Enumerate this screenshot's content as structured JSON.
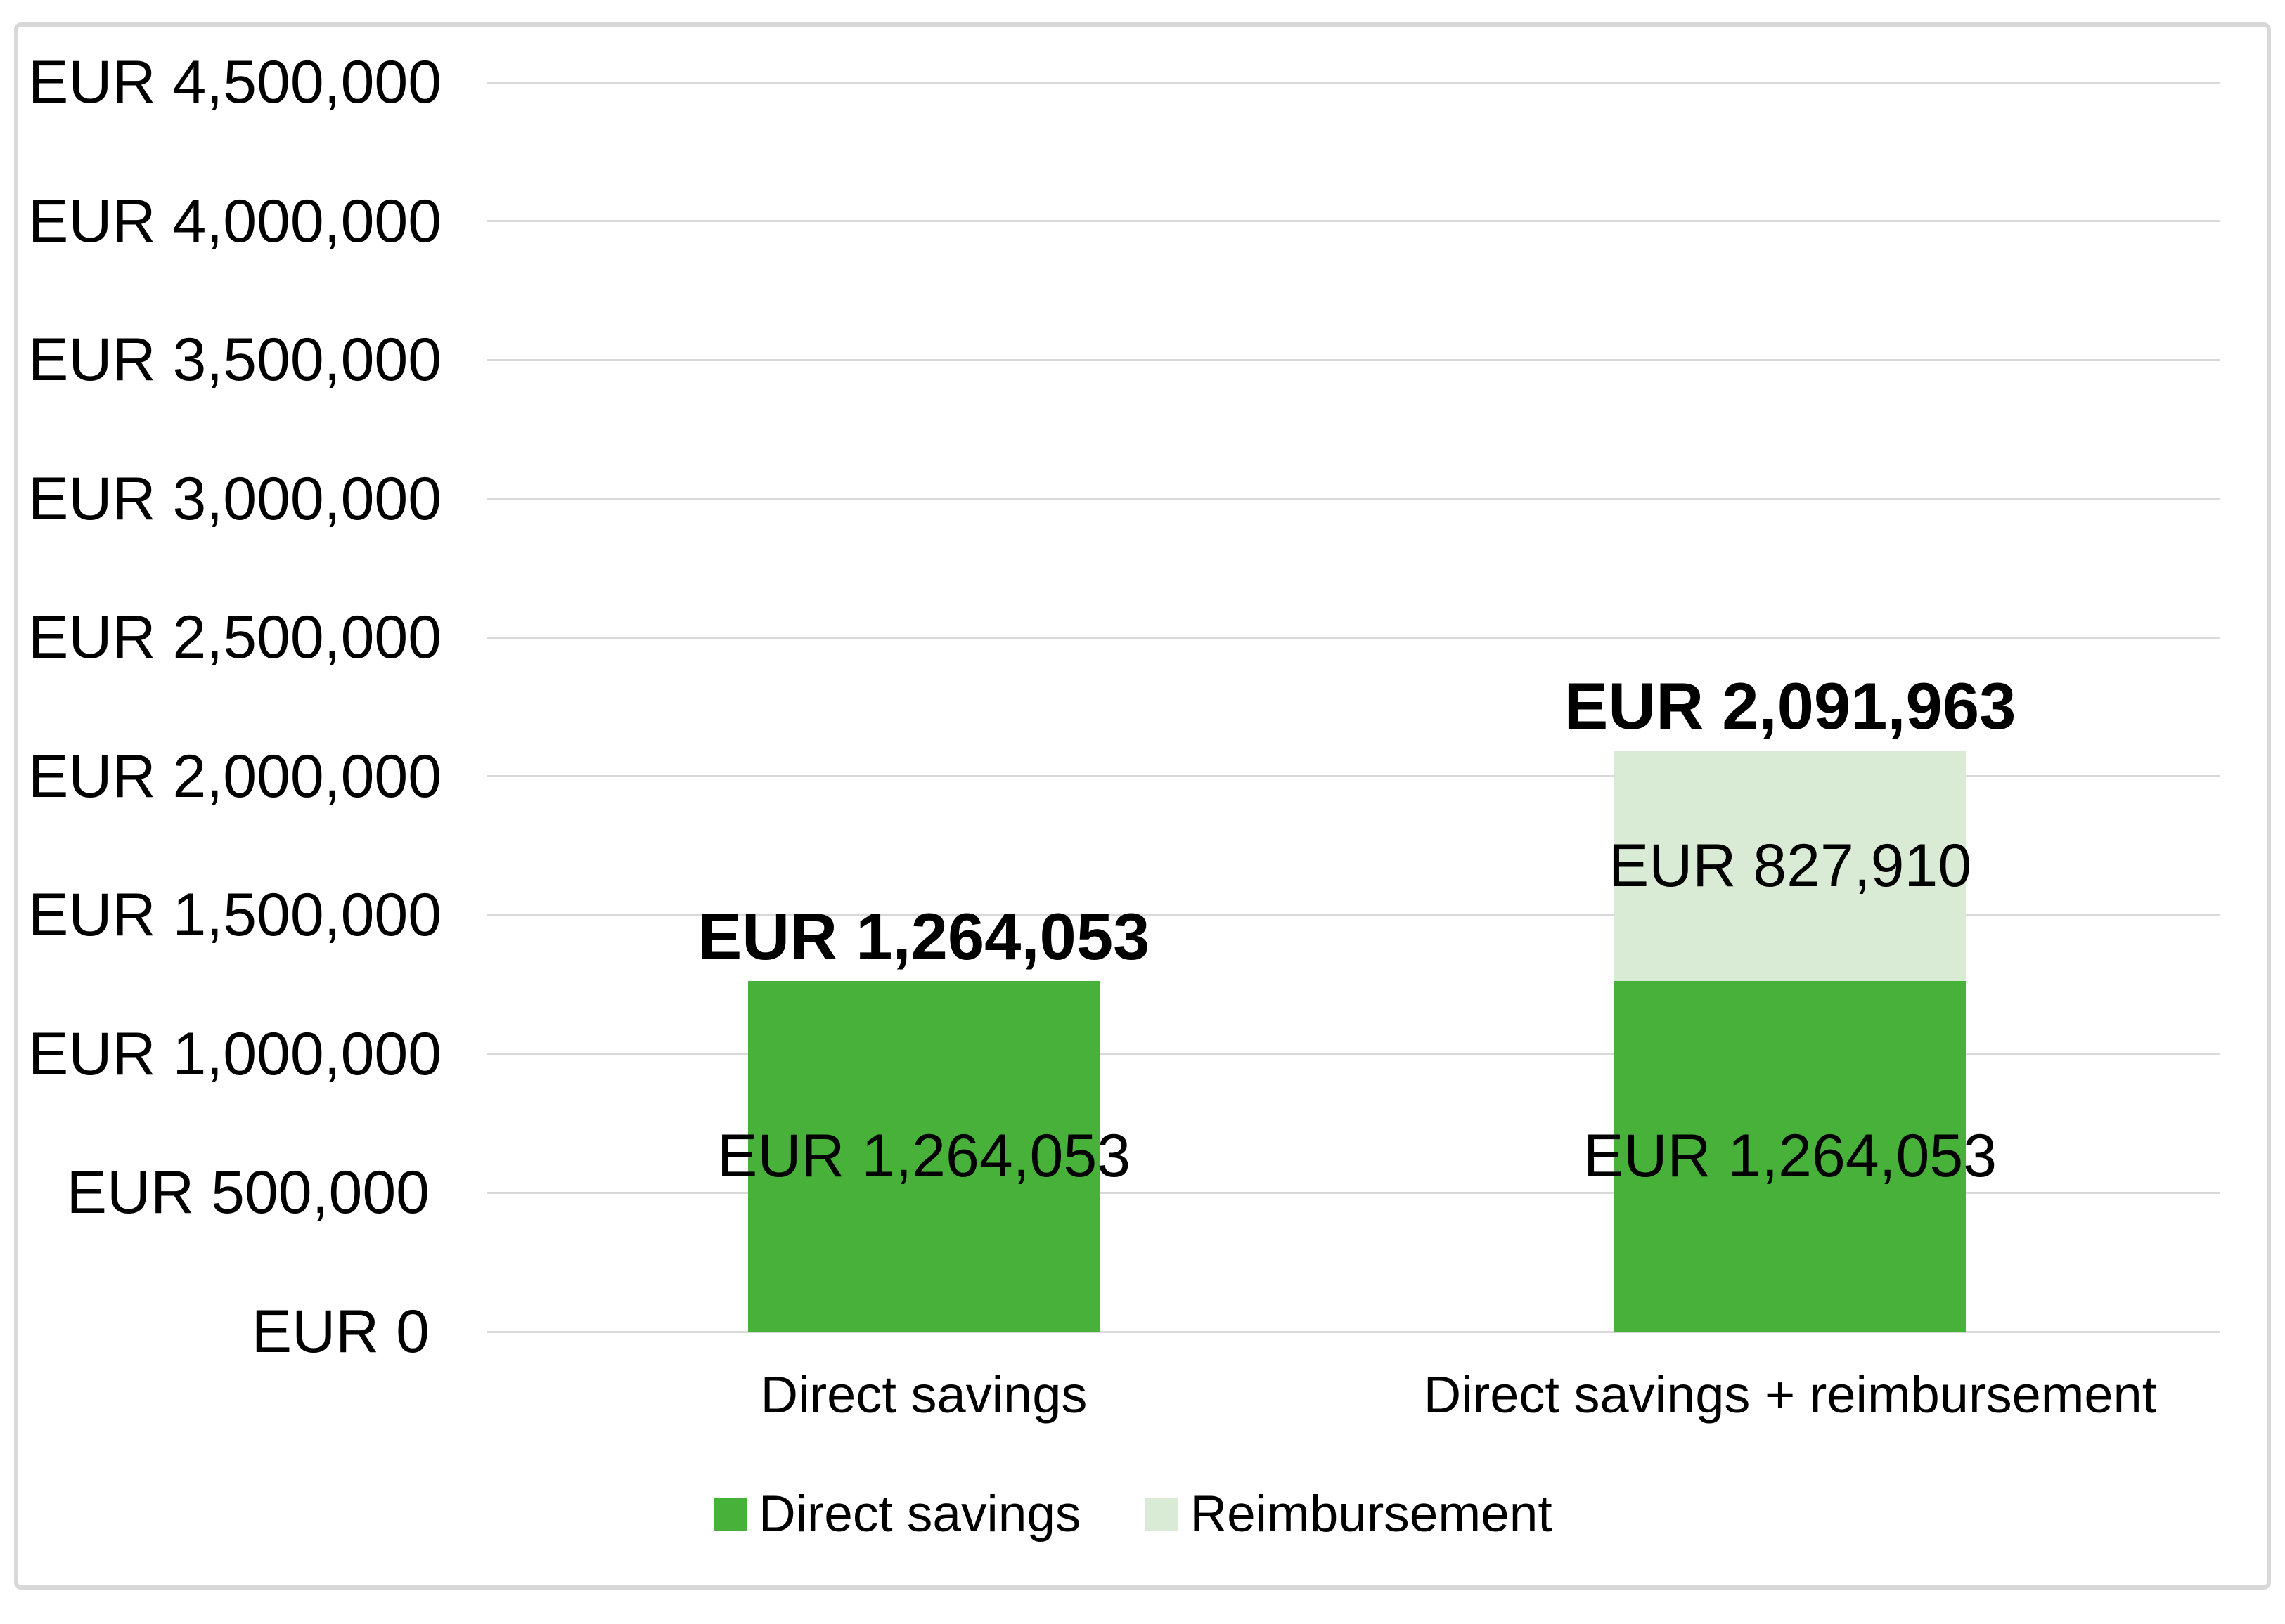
{
  "chart_data": {
    "type": "bar",
    "stacked": true,
    "currency": "EUR",
    "categories": [
      "Direct savings",
      "Direct savings + reimbursement"
    ],
    "series": [
      {
        "name": "Direct savings",
        "color": "#47B13A",
        "values": [
          1264053,
          1264053
        ]
      },
      {
        "name": "Reimbursement",
        "color": "#DAEBD5",
        "values": [
          0,
          827910
        ]
      }
    ],
    "totals": [
      1264053,
      2091963
    ],
    "total_labels": [
      "EUR 1,264,053",
      "EUR 2,091,963"
    ],
    "segment_labels": [
      [
        "EUR 1,264,053",
        null
      ],
      [
        "EUR 1,264,053",
        "EUR 827,910"
      ]
    ],
    "y_tick_labels": [
      "EUR 0",
      "EUR 500,000",
      "EUR 1,000,000",
      "EUR 1,500,000",
      "EUR 2,000,000",
      "EUR 2,500,000",
      "EUR 3,000,000",
      "EUR 3,500,000",
      "EUR 4,000,000",
      "EUR 4,500,000"
    ],
    "y_tick_values": [
      0,
      500000,
      1000000,
      1500000,
      2000000,
      2500000,
      3000000,
      3500000,
      4000000,
      4500000
    ],
    "ylim": [
      0,
      4500000
    ],
    "grid": true,
    "legend": [
      "Direct savings",
      "Reimbursement"
    ],
    "legend_position": "bottom",
    "colors": {
      "direct_savings": "#47B13A",
      "reimbursement": "#DAEBD5",
      "gridline": "#D9D9D9",
      "frame_border": "#D8D8D8",
      "text": "#000000",
      "background": "#FFFFFF"
    }
  }
}
